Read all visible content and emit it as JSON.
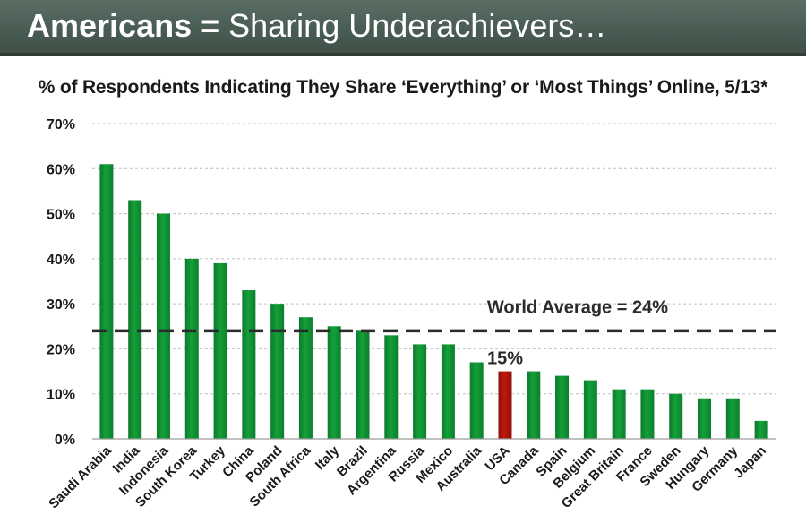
{
  "header": {
    "title_bold": "Americans =",
    "title_rest": "Sharing Underachievers…"
  },
  "subtitle": "% of Respondents Indicating They Share ‘Everything’ or ‘Most Things’ Online, 5/13*",
  "colors": {
    "bar": "#14a03a",
    "highlight_bar": "#c0180c",
    "average_line": "#2b2b2b",
    "grid": "#bdbdbd"
  },
  "chart_data": {
    "type": "bar",
    "categories": [
      "Saudi Arabia",
      "India",
      "Indonesia",
      "South Korea",
      "Turkey",
      "China",
      "Poland",
      "South Africa",
      "Italy",
      "Brazil",
      "Argentina",
      "Russia",
      "Mexico",
      "Australia",
      "USA",
      "Canada",
      "Spain",
      "Belgium",
      "Great Britain",
      "France",
      "Sweden",
      "Hungary",
      "Germany",
      "Japan"
    ],
    "values": [
      61,
      53,
      50,
      40,
      39,
      33,
      30,
      27,
      25,
      24,
      23,
      21,
      21,
      17,
      15,
      15,
      14,
      13,
      11,
      11,
      10,
      9,
      9,
      4
    ],
    "unit": "%",
    "ylim": [
      0,
      70
    ],
    "yticks": [
      "0%",
      "10%",
      "20%",
      "30%",
      "40%",
      "50%",
      "60%",
      "70%"
    ],
    "grid": true,
    "highlight": {
      "category": "USA",
      "label": "15%"
    },
    "reference_line": {
      "value": 24,
      "label": "World Average = 24%"
    }
  }
}
